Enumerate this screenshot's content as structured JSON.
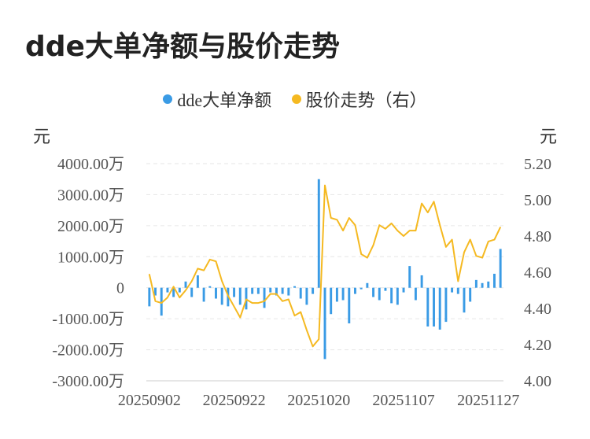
{
  "title": "dde大单净额与股价走势",
  "legend": [
    {
      "label": "dde大单净额",
      "color": "#3a9be5"
    },
    {
      "label": "股价走势（右）",
      "color": "#f5b921"
    }
  ],
  "units": {
    "left": "元",
    "right": "元"
  },
  "chart_data": {
    "type": "bar+line",
    "x_tick_labels": [
      "20250902",
      "20250922",
      "20251020",
      "20251107",
      "20251127"
    ],
    "x_tick_indices": [
      0,
      14,
      28,
      42,
      56
    ],
    "left_axis": {
      "ticks": [
        "4000.00万",
        "3000.00万",
        "2000.00万",
        "1000.00万",
        "0",
        "-1000.00万",
        "-2000.00万",
        "-3000.00万"
      ],
      "range": [
        -3000,
        4000
      ]
    },
    "right_axis": {
      "ticks": [
        "5.20",
        "5.00",
        "4.80",
        "4.60",
        "4.40",
        "4.20",
        "4.00"
      ],
      "range": [
        4.0,
        5.2
      ]
    },
    "grid": true,
    "series": [
      {
        "name": "dde大单净额",
        "type": "bar",
        "unit": "万元",
        "values": [
          -600,
          -250,
          -900,
          -150,
          -300,
          -150,
          200,
          -300,
          400,
          -450,
          50,
          -350,
          -550,
          -600,
          -300,
          -550,
          -700,
          -200,
          -200,
          -650,
          -150,
          -250,
          -200,
          -250,
          50,
          -350,
          -550,
          -200,
          3500,
          -2300,
          -850,
          -450,
          -400,
          -1150,
          -200,
          -50,
          150,
          -300,
          -400,
          -100,
          -500,
          -550,
          -150,
          700,
          -400,
          400,
          -1250,
          -1250,
          -1350,
          -1100,
          -150,
          -200,
          -800,
          -450,
          250,
          150,
          200,
          450,
          1250
        ]
      },
      {
        "name": "股价走势（右）",
        "type": "line",
        "unit": "元",
        "values": [
          4.59,
          4.44,
          4.43,
          4.46,
          4.52,
          4.46,
          4.5,
          4.55,
          4.62,
          4.61,
          4.67,
          4.66,
          4.55,
          4.47,
          4.41,
          4.35,
          4.45,
          4.43,
          4.43,
          4.44,
          4.48,
          4.48,
          4.44,
          4.45,
          4.36,
          4.38,
          4.28,
          4.19,
          4.23,
          5.08,
          4.9,
          4.89,
          4.83,
          4.9,
          4.86,
          4.7,
          4.68,
          4.75,
          4.86,
          4.84,
          4.87,
          4.83,
          4.8,
          4.83,
          4.83,
          4.98,
          4.93,
          4.99,
          4.86,
          4.74,
          4.78,
          4.55,
          4.71,
          4.78,
          4.69,
          4.68,
          4.77,
          4.78,
          4.85
        ]
      }
    ]
  }
}
